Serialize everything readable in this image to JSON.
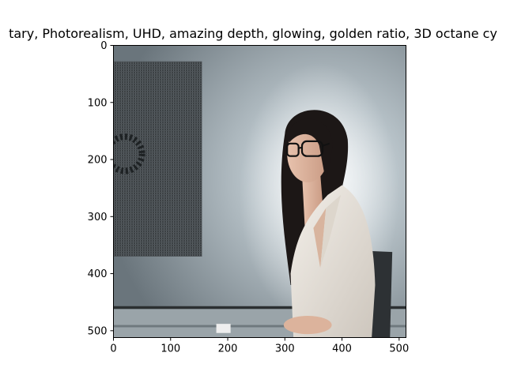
{
  "chart_data": {
    "type": "image",
    "title": "tary,  Photorealism, UHD, amazing depth, glowing, golden ratio, 3D octane cy",
    "xlim": [
      0,
      512
    ],
    "ylim": [
      512,
      0
    ],
    "x_ticks": [
      0,
      100,
      200,
      300,
      400,
      500
    ],
    "y_ticks": [
      0,
      100,
      200,
      300,
      400,
      500
    ],
    "grid": false,
    "image_subject": "photorealistic woman with glasses in white blazer seated in office"
  }
}
